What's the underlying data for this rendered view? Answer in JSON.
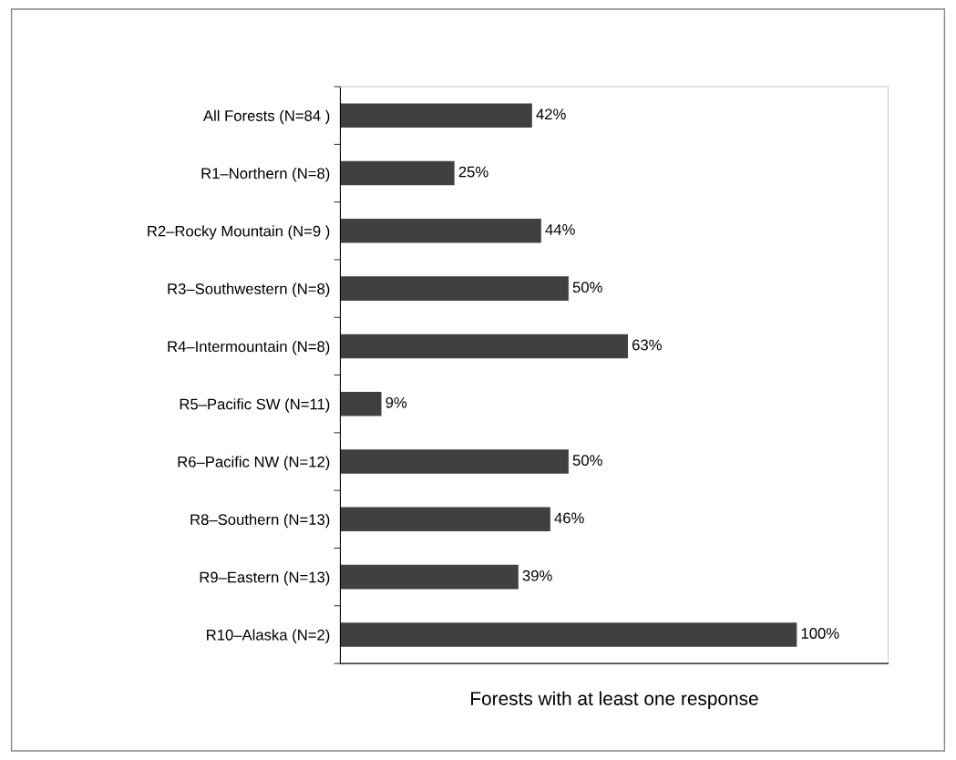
{
  "chart_data": {
    "type": "bar",
    "orientation": "horizontal",
    "xlabel": "Forests with at least one response",
    "categories": [
      "All Forests (N=84 )",
      "R1–Northern (N=8)",
      "R2–Rocky Mountain (N=9 )",
      "R3–Southwestern (N=8)",
      "R4–Intermountain (N=8)",
      "R5–Pacific SW (N=11)",
      "R6–Pacific NW (N=12)",
      "R8–Southern (N=13)",
      "R9–Eastern (N=13)",
      "R10–Alaska (N=2)"
    ],
    "values": [
      42,
      25,
      44,
      50,
      63,
      9,
      50,
      46,
      39,
      100
    ],
    "value_labels": [
      "42%",
      "25%",
      "44%",
      "50%",
      "63%",
      "9%",
      "50%",
      "46%",
      "39%",
      "100%"
    ],
    "color": "#404040",
    "xlim": [
      0,
      120
    ],
    "tick_labels": "y"
  }
}
